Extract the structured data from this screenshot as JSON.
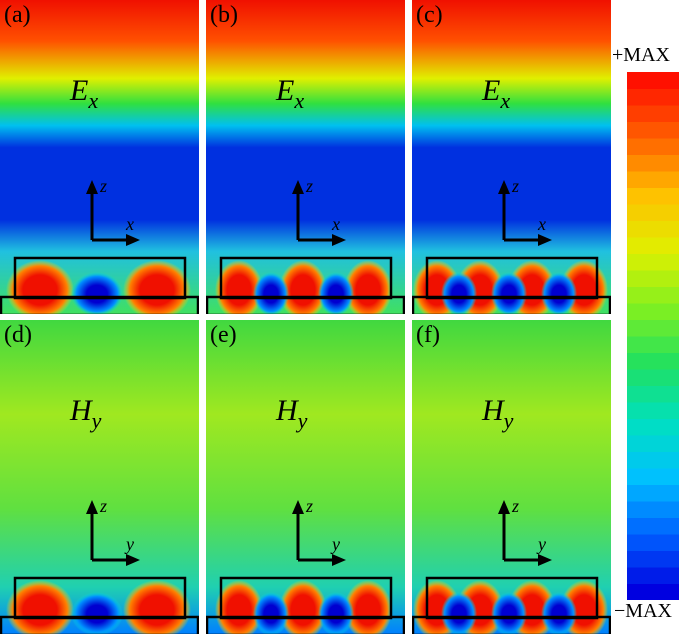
{
  "panels": [
    {
      "label": "(a)",
      "field": "E",
      "sub": "x",
      "axis_h": "x",
      "axis_v": "z"
    },
    {
      "label": "(b)",
      "field": "E",
      "sub": "x",
      "axis_h": "x",
      "axis_v": "z"
    },
    {
      "label": "(c)",
      "field": "E",
      "sub": "x",
      "axis_h": "x",
      "axis_v": "z"
    },
    {
      "label": "(d)",
      "field": "H",
      "sub": "y",
      "axis_h": "y",
      "axis_v": "z"
    },
    {
      "label": "(e)",
      "field": "H",
      "sub": "y",
      "axis_h": "y",
      "axis_v": "z"
    },
    {
      "label": "(f)",
      "field": "H",
      "sub": "y",
      "axis_h": "y",
      "axis_v": "z"
    }
  ],
  "colorbar": {
    "max_label": "+MAX",
    "min_label": "−MAX",
    "colors": [
      "#0000e0",
      "#0060ff",
      "#00c0ff",
      "#00e0c0",
      "#20e060",
      "#80f020",
      "#e0f000",
      "#ffc000",
      "#ff6000",
      "#ff1000"
    ]
  }
}
